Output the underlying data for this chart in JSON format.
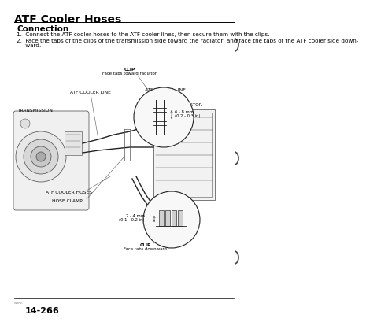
{
  "title": "ATF Cooler Hoses",
  "section": "Connection",
  "instr1": "1.  Connect the ATF cooler hoses to the ATF cooler lines, then secure them with the clips.",
  "instr2_a": "2.  Face the tabs of the clips of the transmission side toward the radiator, and face the tabs of the ATF cooler side down-",
  "instr2_b": "     ward.",
  "label_clip_top1": "CLIP",
  "label_clip_top2": "Face tabs toward radiator.",
  "label_atf_left": "ATF COOLER LINE",
  "label_atf_right": "ATF COOLER LINE",
  "label_trans": "TRANSMISSION",
  "label_rad": "RADIATOR",
  "label_hoses": "ATF COOLER HOSES",
  "label_clamp": "HOSE CLAMP",
  "label_clip_bot1": "CLIP",
  "label_clip_bot2": "Face tabs downward.",
  "dim_top1": "6 - 8 mm",
  "dim_top2": "(0.2 - 0.3 in)",
  "dim_bot1": "2 - 4 mm",
  "dim_bot2": "(0.1 - 0.2 in)",
  "page_num": "14-266",
  "page_prefix": "www.",
  "bg": "#ffffff",
  "fg": "#000000",
  "gray": "#555555",
  "lightgray": "#cccccc",
  "title_fs": 10,
  "sec_fs": 7.5,
  "body_fs": 5.2,
  "lbl_fs": 4.2,
  "dim_fs": 3.8,
  "pnum_fs": 8
}
